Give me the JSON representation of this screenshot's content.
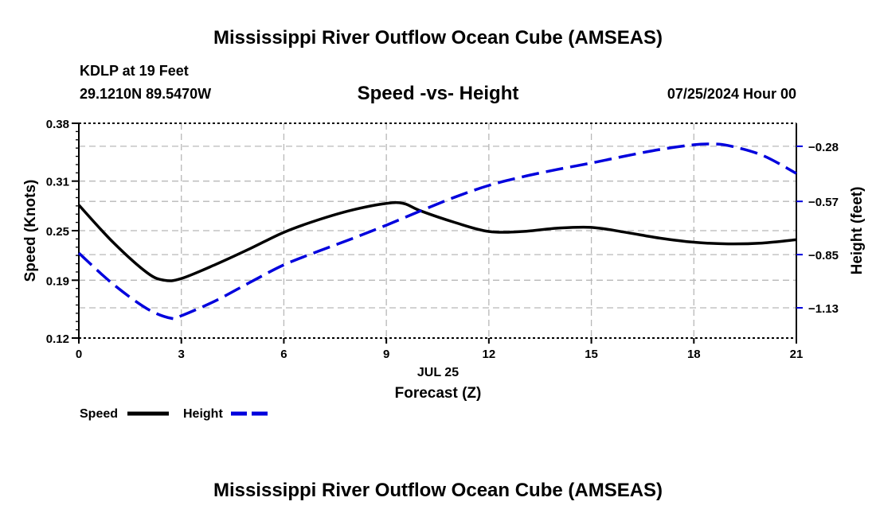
{
  "header": {
    "title": "Mississippi River Outflow Ocean Cube (AMSEAS)",
    "station": "KDLP at 19 Feet",
    "coords": "29.1210N  89.5470W",
    "datetime": "07/25/2024 Hour 00"
  },
  "footer": {
    "title": "Mississippi River Outflow Ocean Cube (AMSEAS)"
  },
  "chart_data": {
    "type": "line",
    "title": "Speed -vs- Height",
    "xlabel": "Forecast (Z)",
    "xsublabel": "JUL 25",
    "ylabel": "Speed (Knots)",
    "y2label": "Height (feet)",
    "xlim": [
      0,
      21
    ],
    "ylim": [
      0.12,
      0.38
    ],
    "y2lim": [
      -1.289,
      -0.159
    ],
    "xticks": [
      0,
      3,
      6,
      9,
      12,
      15,
      18,
      21
    ],
    "yticks": [
      0.12,
      0.19,
      0.25,
      0.31,
      0.38
    ],
    "ytick_labels": [
      "0.12",
      "0.19",
      "0.25",
      "0.31",
      "0.38"
    ],
    "y2ticks": [
      -0.28,
      -0.57,
      -0.85,
      -1.13
    ],
    "y2tick_labels": [
      "−0.28",
      "−0.57",
      "−0.85",
      "−1.13"
    ],
    "grid": true,
    "legend_position": "bottom-left",
    "series": [
      {
        "name": "Speed",
        "axis": "left",
        "color": "#000000",
        "style": "solid",
        "x": [
          0,
          1,
          2,
          2.5,
          3,
          4,
          5,
          6,
          7,
          8,
          9,
          9.5,
          10,
          11,
          12,
          13,
          14,
          15,
          16,
          17,
          18,
          19,
          20,
          21
        ],
        "values": [
          0.281,
          0.236,
          0.199,
          0.19,
          0.192,
          0.209,
          0.228,
          0.248,
          0.263,
          0.275,
          0.283,
          0.283,
          0.274,
          0.26,
          0.249,
          0.249,
          0.253,
          0.254,
          0.248,
          0.241,
          0.236,
          0.234,
          0.235,
          0.239
        ]
      },
      {
        "name": "Height",
        "axis": "right",
        "color": "#0000dd",
        "style": "dashed",
        "x": [
          0,
          1,
          2,
          2.7,
          3,
          4,
          5,
          6,
          7,
          8,
          9,
          10,
          11,
          12,
          13,
          14,
          15,
          16,
          17,
          18,
          18.5,
          19,
          20,
          21
        ],
        "values": [
          -0.842,
          -1.005,
          -1.135,
          -1.185,
          -1.172,
          -1.093,
          -0.997,
          -0.904,
          -0.833,
          -0.766,
          -0.695,
          -0.62,
          -0.548,
          -0.486,
          -0.44,
          -0.402,
          -0.368,
          -0.331,
          -0.297,
          -0.272,
          -0.268,
          -0.276,
          -0.327,
          -0.423
        ]
      }
    ]
  }
}
